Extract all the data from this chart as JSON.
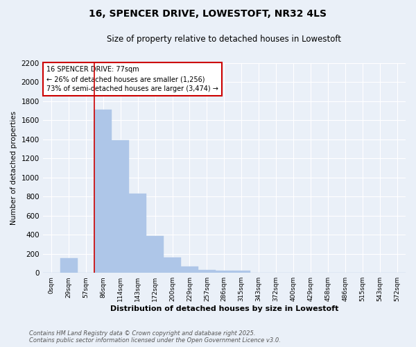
{
  "title": "16, SPENCER DRIVE, LOWESTOFT, NR32 4LS",
  "subtitle": "Size of property relative to detached houses in Lowestoft",
  "xlabel": "Distribution of detached houses by size in Lowestoft",
  "ylabel": "Number of detached properties",
  "bar_labels": [
    "0sqm",
    "29sqm",
    "57sqm",
    "86sqm",
    "114sqm",
    "143sqm",
    "172sqm",
    "200sqm",
    "229sqm",
    "257sqm",
    "286sqm",
    "315sqm",
    "343sqm",
    "372sqm",
    "400sqm",
    "429sqm",
    "458sqm",
    "486sqm",
    "515sqm",
    "543sqm",
    "572sqm"
  ],
  "bar_values": [
    0,
    155,
    0,
    1710,
    1390,
    830,
    390,
    160,
    65,
    30,
    20,
    20,
    0,
    0,
    0,
    0,
    0,
    0,
    0,
    0,
    0
  ],
  "bar_color": "#aec6e8",
  "bar_edgecolor": "#aec6e8",
  "background_color": "#eaf0f8",
  "grid_color": "#ffffff",
  "vline_color": "#cc0000",
  "vline_x": 2.5,
  "ylim": [
    0,
    2200
  ],
  "yticks": [
    0,
    200,
    400,
    600,
    800,
    1000,
    1200,
    1400,
    1600,
    1800,
    2000,
    2200
  ],
  "annotation_text": "16 SPENCER DRIVE: 77sqm\n← 26% of detached houses are smaller (1,256)\n73% of semi-detached houses are larger (3,474) →",
  "annotation_box_color": "#ffffff",
  "annotation_border_color": "#cc0000",
  "footer_line1": "Contains HM Land Registry data © Crown copyright and database right 2025.",
  "footer_line2": "Contains public sector information licensed under the Open Government Licence v3.0."
}
